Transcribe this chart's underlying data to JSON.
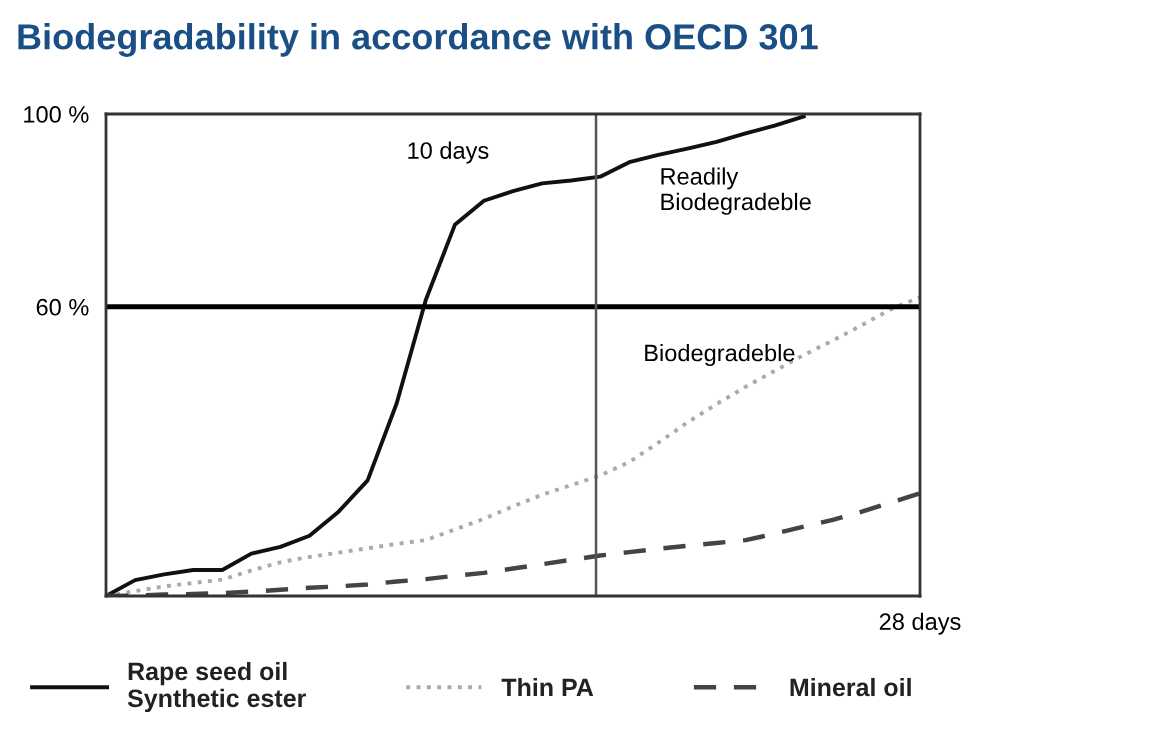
{
  "chart_data": {
    "type": "line",
    "title": "Biodegradability in accordance with OECD 301",
    "categories": [
      null,
      null,
      null,
      null,
      null,
      null,
      null,
      null,
      null,
      null,
      null,
      null,
      null,
      null,
      null,
      null,
      null,
      null,
      null,
      null,
      null,
      null,
      null,
      null,
      null,
      null,
      null,
      null,
      "28 days"
    ],
    "ylim": [
      0,
      100
    ],
    "yticks": [
      {
        "value": 60,
        "label": "60 %"
      },
      {
        "value": 100,
        "label": "100 %"
      }
    ],
    "legend": "bottom",
    "marker": "none",
    "ref_lines": [
      {
        "axis": "y",
        "value": 60,
        "color": "#000000",
        "line_style": "solid"
      }
    ],
    "annotations": [
      "10 days",
      "Readily\nBiodegradeble",
      "Biodegradeble"
    ],
    "series": [
      {
        "name": "Rape seed oil\nSynthetic ester",
        "color": "#111111",
        "line_style": "solid",
        "values": [
          0,
          3.3,
          4.5,
          5.4,
          5.4,
          8.8,
          10.2,
          12.5,
          17.5,
          24,
          40,
          61.4,
          77,
          82,
          84,
          85.6,
          86.2,
          87,
          90,
          91.5,
          92.8,
          94.2,
          96,
          97.6,
          99.5,
          null,
          null,
          null,
          null
        ]
      },
      {
        "name": "Thin PA",
        "color": "#aaaaaa",
        "line_style": "dotted",
        "values": [
          0,
          1,
          2,
          2.7,
          3.4,
          5.3,
          7,
          8.1,
          9,
          9.9,
          10.8,
          11.6,
          13.8,
          16,
          18.6,
          21,
          23,
          25,
          27.8,
          31.8,
          36,
          39.8,
          43.4,
          46.7,
          50,
          53,
          56.2,
          59.5,
          62
        ]
      },
      {
        "name": "Mineral oil",
        "color": "#444444",
        "line_style": "dashed",
        "values": [
          0,
          0.1,
          0.3,
          0.4,
          0.6,
          0.9,
          1.3,
          1.7,
          2,
          2.4,
          3,
          3.5,
          4.2,
          4.8,
          5.7,
          6.6,
          7.5,
          8.4,
          9.1,
          9.8,
          10.4,
          11,
          11.6,
          12.9,
          14.4,
          15.8,
          17.5,
          19.4,
          21.3
        ]
      }
    ]
  }
}
